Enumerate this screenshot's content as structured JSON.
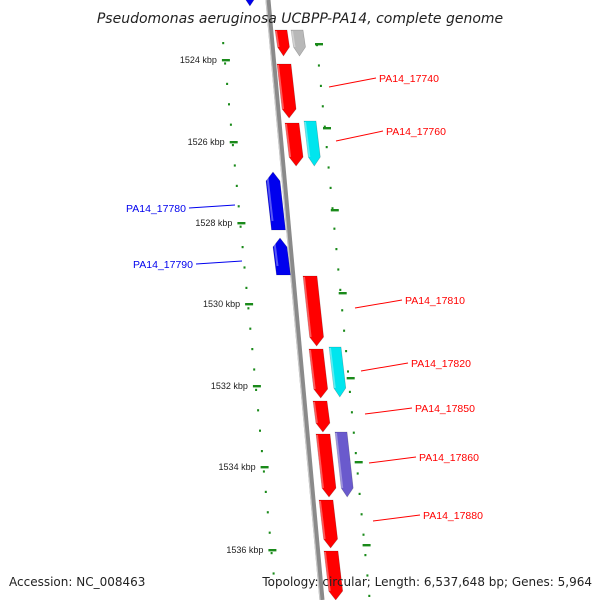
{
  "title": "Pseudomonas aeruginosa UCBPP-PA14, complete genome",
  "footer": {
    "accession": "Accession: NC_008463",
    "summary": "Topology: circular; Length: 6,537,648 bp; Genes: 5,964"
  },
  "colors": {
    "backbone": "#8a8a8a",
    "ticks": "#1a8a1a",
    "forward_cds": "#ff0000",
    "reverse_cds": "#0000ee",
    "rna": "#00e5ee",
    "other": "#6a5acd",
    "pseudo": "#b8b8b8"
  },
  "kbp_labels": [
    "1524 kbp",
    "1526 kbp",
    "1528 kbp",
    "1530 kbp",
    "1532 kbp",
    "1534 kbp",
    "1536 kbp"
  ],
  "genes": [
    {
      "name": "PA14_17740",
      "strand": "forward"
    },
    {
      "name": "PA14_17760",
      "strand": "forward"
    },
    {
      "name": "PA14_17780",
      "strand": "reverse"
    },
    {
      "name": "PA14_17790",
      "strand": "reverse"
    },
    {
      "name": "PA14_17810",
      "strand": "forward"
    },
    {
      "name": "PA14_17820",
      "strand": "forward"
    },
    {
      "name": "PA14_17850",
      "strand": "forward"
    },
    {
      "name": "PA14_17860",
      "strand": "forward"
    },
    {
      "name": "PA14_17880",
      "strand": "forward"
    }
  ]
}
